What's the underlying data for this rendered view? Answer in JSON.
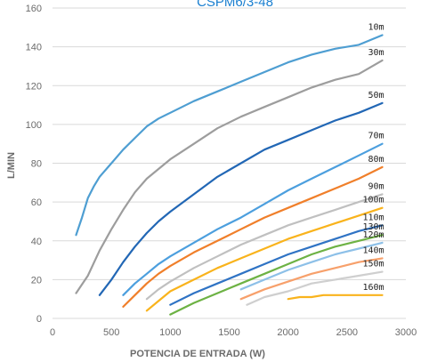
{
  "chart_data": {
    "type": "line",
    "title": "CSPM6/3-48",
    "xlabel": "POTENCIA DE ENTRADA (W)",
    "ylabel": "L/MIN",
    "xlim": [
      0,
      3000
    ],
    "ylim": [
      0,
      160
    ],
    "x_ticks": [
      "0",
      "500",
      "1000",
      "1500",
      "2000",
      "2500",
      "3000"
    ],
    "y_ticks": [
      "0",
      "20",
      "40",
      "60",
      "80",
      "100",
      "120",
      "140",
      "160"
    ],
    "x_tick_values": [
      0,
      500,
      1000,
      1500,
      2000,
      2500,
      3000
    ],
    "y_tick_values": [
      0,
      20,
      40,
      60,
      80,
      100,
      120,
      140,
      160
    ],
    "grid": "horizontal",
    "legend": "inline labels at right end of each line",
    "series": [
      {
        "name": "10m",
        "color": "#4e9ed2",
        "points": [
          [
            200,
            43
          ],
          [
            250,
            52
          ],
          [
            300,
            62
          ],
          [
            350,
            68
          ],
          [
            400,
            73
          ],
          [
            500,
            80
          ],
          [
            600,
            87
          ],
          [
            700,
            93
          ],
          [
            800,
            99
          ],
          [
            900,
            103
          ],
          [
            1000,
            106
          ],
          [
            1200,
            112
          ],
          [
            1400,
            117
          ],
          [
            1600,
            122
          ],
          [
            1800,
            127
          ],
          [
            2000,
            132
          ],
          [
            2200,
            136
          ],
          [
            2400,
            139
          ],
          [
            2600,
            141
          ],
          [
            2800,
            146
          ]
        ]
      },
      {
        "name": "30m",
        "color": "#9d9d9d",
        "points": [
          [
            200,
            13
          ],
          [
            300,
            22
          ],
          [
            400,
            35
          ],
          [
            500,
            46
          ],
          [
            600,
            56
          ],
          [
            700,
            65
          ],
          [
            800,
            72
          ],
          [
            900,
            77
          ],
          [
            1000,
            82
          ],
          [
            1200,
            90
          ],
          [
            1400,
            98
          ],
          [
            1600,
            104
          ],
          [
            1800,
            109
          ],
          [
            2000,
            114
          ],
          [
            2200,
            119
          ],
          [
            2400,
            123
          ],
          [
            2600,
            126
          ],
          [
            2800,
            133
          ]
        ]
      },
      {
        "name": "50m",
        "color": "#2267b5",
        "points": [
          [
            400,
            12
          ],
          [
            500,
            20
          ],
          [
            600,
            29
          ],
          [
            700,
            37
          ],
          [
            800,
            44
          ],
          [
            900,
            50
          ],
          [
            1000,
            55
          ],
          [
            1200,
            64
          ],
          [
            1400,
            73
          ],
          [
            1600,
            80
          ],
          [
            1800,
            87
          ],
          [
            2000,
            92
          ],
          [
            2200,
            97
          ],
          [
            2400,
            102
          ],
          [
            2600,
            106
          ],
          [
            2800,
            111
          ]
        ]
      },
      {
        "name": "70m",
        "color": "#4c9fde",
        "points": [
          [
            600,
            12
          ],
          [
            700,
            18
          ],
          [
            800,
            23
          ],
          [
            900,
            28
          ],
          [
            1000,
            32
          ],
          [
            1200,
            39
          ],
          [
            1400,
            46
          ],
          [
            1600,
            52
          ],
          [
            1800,
            59
          ],
          [
            2000,
            66
          ],
          [
            2200,
            72
          ],
          [
            2400,
            78
          ],
          [
            2600,
            84
          ],
          [
            2800,
            90
          ]
        ]
      },
      {
        "name": "80m",
        "color": "#f07f2a",
        "points": [
          [
            600,
            6
          ],
          [
            700,
            12
          ],
          [
            800,
            18
          ],
          [
            900,
            23
          ],
          [
            1000,
            27
          ],
          [
            1200,
            34
          ],
          [
            1400,
            40
          ],
          [
            1600,
            46
          ],
          [
            1800,
            52
          ],
          [
            2000,
            57
          ],
          [
            2200,
            62
          ],
          [
            2400,
            67
          ],
          [
            2600,
            72
          ],
          [
            2800,
            78
          ]
        ]
      },
      {
        "name": "90m",
        "color": "#c0c0c0",
        "points": [
          [
            800,
            10
          ],
          [
            900,
            15
          ],
          [
            1000,
            19
          ],
          [
            1200,
            26
          ],
          [
            1400,
            32
          ],
          [
            1600,
            38
          ],
          [
            1800,
            43
          ],
          [
            2000,
            48
          ],
          [
            2200,
            52
          ],
          [
            2400,
            56
          ],
          [
            2600,
            60
          ],
          [
            2800,
            64
          ]
        ]
      },
      {
        "name": "100m",
        "color": "#f9b31c",
        "points": [
          [
            800,
            4
          ],
          [
            900,
            9
          ],
          [
            1000,
            14
          ],
          [
            1200,
            20
          ],
          [
            1400,
            26
          ],
          [
            1600,
            31
          ],
          [
            1800,
            36
          ],
          [
            2000,
            41
          ],
          [
            2200,
            45
          ],
          [
            2400,
            49
          ],
          [
            2600,
            53
          ],
          [
            2800,
            57
          ]
        ]
      },
      {
        "name": "110m",
        "color": "#2f73c4",
        "points": [
          [
            1000,
            7
          ],
          [
            1200,
            13
          ],
          [
            1400,
            18
          ],
          [
            1600,
            23
          ],
          [
            1800,
            28
          ],
          [
            2000,
            33
          ],
          [
            2200,
            37
          ],
          [
            2400,
            41
          ],
          [
            2600,
            45
          ],
          [
            2800,
            48
          ]
        ]
      },
      {
        "name": "120m",
        "color": "#8dc0e8",
        "points": [
          [
            1600,
            15
          ],
          [
            1800,
            20
          ],
          [
            2000,
            25
          ],
          [
            2200,
            29
          ],
          [
            2400,
            33
          ],
          [
            2600,
            36
          ],
          [
            2800,
            39
          ]
        ]
      },
      {
        "name": "130m",
        "color": "#6db244",
        "points": [
          [
            1000,
            2
          ],
          [
            1200,
            8
          ],
          [
            1400,
            13
          ],
          [
            1600,
            18
          ],
          [
            1800,
            23
          ],
          [
            2000,
            28
          ],
          [
            2200,
            33
          ],
          [
            2400,
            37
          ],
          [
            2600,
            40
          ],
          [
            2800,
            43
          ]
        ]
      },
      {
        "name": "140m",
        "color": "#f7a06b",
        "points": [
          [
            1600,
            10
          ],
          [
            1800,
            15
          ],
          [
            2000,
            19
          ],
          [
            2200,
            23
          ],
          [
            2400,
            26
          ],
          [
            2600,
            29
          ],
          [
            2800,
            31
          ]
        ]
      },
      {
        "name": "150m",
        "color": "#cfcfcf",
        "points": [
          [
            1650,
            7
          ],
          [
            1800,
            11
          ],
          [
            2000,
            14
          ],
          [
            2200,
            18
          ],
          [
            2400,
            20
          ],
          [
            2600,
            22
          ],
          [
            2800,
            24
          ]
        ]
      },
      {
        "name": "160m",
        "color": "#f9b31c",
        "points": [
          [
            2000,
            10
          ],
          [
            2100,
            11
          ],
          [
            2200,
            11
          ],
          [
            2300,
            12
          ],
          [
            2400,
            12
          ],
          [
            2600,
            12
          ],
          [
            2800,
            12
          ]
        ]
      }
    ]
  }
}
